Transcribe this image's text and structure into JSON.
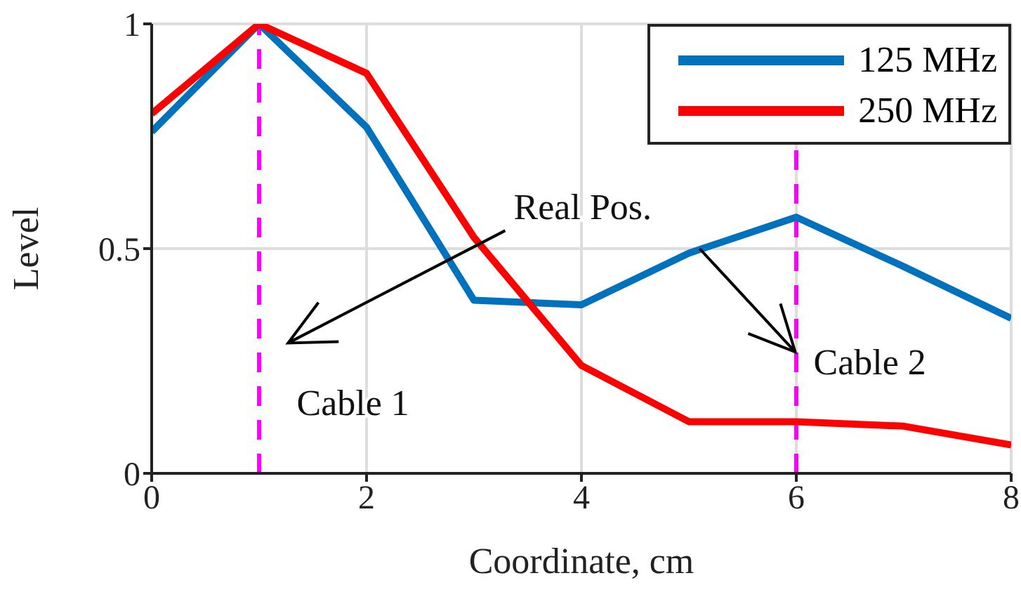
{
  "chart_data": {
    "type": "line",
    "xlabel": "Coordinate, cm",
    "ylabel": "Level",
    "x": [
      0,
      1,
      2,
      3,
      4,
      5,
      6,
      7,
      8
    ],
    "series": [
      {
        "name": "125 MHz",
        "color": "#0072bd",
        "values": [
          0.76,
          1,
          0.77,
          0.385,
          0.375,
          0.49,
          0.57,
          0.46,
          0.345
        ]
      },
      {
        "name": "250 MHz",
        "color": "#ff0000",
        "values": [
          0.8,
          1,
          0.89,
          0.525,
          0.24,
          0.115,
          0.115,
          0.105,
          0.063
        ]
      }
    ],
    "xlim": [
      0,
      8
    ],
    "xticks": [
      0,
      2,
      4,
      6,
      8
    ],
    "ylim": [
      0,
      1
    ],
    "yticks": [
      0,
      0.5,
      1
    ],
    "grid": true,
    "legend": "top right",
    "line_style": "solid",
    "marker": "none",
    "ref_lines": [
      {
        "axis": "x",
        "value": 1,
        "color": "#ff00ff",
        "line_style": "dashed"
      },
      {
        "axis": "x",
        "value": 6,
        "color": "#ff00ff",
        "line_style": "dashed"
      }
    ],
    "annotations": [
      "Real Pos.",
      {
        "text": "Cable 1",
        "x": 1
      },
      {
        "text": "Cable 2",
        "x": 6
      }
    ]
  }
}
